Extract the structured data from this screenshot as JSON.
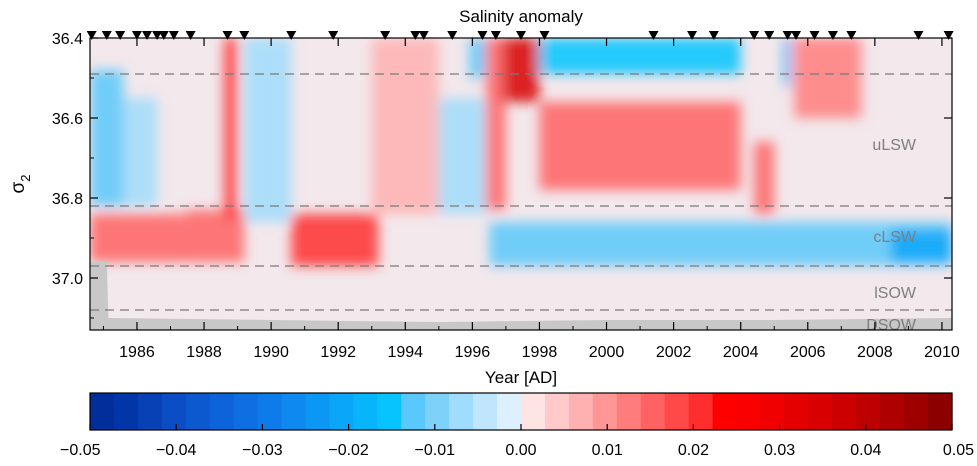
{
  "chart_data": {
    "type": "heatmap",
    "title": "Salinity anomaly",
    "xlabel": "Year [AD]",
    "ylabel": "σ2",
    "xlim": [
      1984.6,
      2010.3
    ],
    "ylim": [
      37.13,
      36.4
    ],
    "x_ticks": [
      1986,
      1988,
      1990,
      1992,
      1994,
      1996,
      1998,
      2000,
      2002,
      2004,
      2006,
      2008,
      2010
    ],
    "x_tick_labels": [
      "1986",
      "1988",
      "1990",
      "1992",
      "1994",
      "1996",
      "1998",
      "2000",
      "2002",
      "2004",
      "2006",
      "2008",
      "2010"
    ],
    "y_ticks": [
      36.4,
      36.6,
      36.8,
      37.0
    ],
    "y_tick_labels": [
      "36.4",
      "36.6",
      "36.8",
      "37.0"
    ],
    "layer_boundaries": [
      36.49,
      36.82,
      36.97,
      37.08
    ],
    "layer_labels": [
      {
        "text": "uLSW",
        "sigma": 36.665
      },
      {
        "text": "cLSW",
        "sigma": 36.895
      },
      {
        "text": "lSOW",
        "sigma": 37.035
      },
      {
        "text": "DSOW",
        "sigma": 37.115
      }
    ],
    "sample_markers": [
      1984.65,
      1985.1,
      1985.5,
      1986.0,
      1986.3,
      1986.6,
      1986.8,
      1987.1,
      1987.6,
      1988.7,
      1989.2,
      1990.6,
      1991.85,
      1993.4,
      1994.3,
      1994.55,
      1995.4,
      1996.3,
      1996.7,
      1997.45,
      1998.15,
      2001.4,
      2002.55,
      2003.2,
      2004.4,
      2004.85,
      2005.4,
      2005.65,
      2006.2,
      2006.75,
      2007.3,
      2009.3,
      2010.2
    ],
    "bottom_mask": [
      [
        1984.6,
        36.96
      ],
      [
        1985.1,
        36.96
      ],
      [
        1985.15,
        37.1
      ],
      [
        1990.0,
        37.105
      ],
      [
        1995.0,
        37.11
      ],
      [
        2000.0,
        37.105
      ],
      [
        2005.0,
        37.105
      ],
      [
        2010.3,
        37.1
      ]
    ],
    "colorbar": {
      "min": -0.05,
      "max": 0.05,
      "ticks": [
        -0.05,
        -0.04,
        -0.03,
        -0.02,
        -0.01,
        0.0,
        0.01,
        0.02,
        0.03,
        0.04,
        0.05
      ],
      "tick_labels": [
        "−0.05",
        "−0.04",
        "−0.03",
        "−0.02",
        "−0.01",
        "0.00",
        "0.01",
        "0.02",
        "0.03",
        "0.04",
        "0.05"
      ],
      "colors": [
        "#002E9A",
        "#0036A8",
        "#0840B6",
        "#0B4DC4",
        "#0C58CF",
        "#0D63D9",
        "#0E6FE3",
        "#0D7BEA",
        "#0D89F0",
        "#0C97F5",
        "#0AA6F9",
        "#08B5FC",
        "#07C4FE",
        "#5AC8FA",
        "#7ED2FA",
        "#A0DCFB",
        "#BFE6FC",
        "#DCF1FD",
        "#FFE4E4",
        "#FFCACA",
        "#FFB0B0",
        "#FF9696",
        "#FF7C7C",
        "#FF6262",
        "#FF4848",
        "#FF2E2E",
        "#FF0000",
        "#FA0000",
        "#F00000",
        "#E40000",
        "#D80000",
        "#CC0000",
        "#BD0000",
        "#AE0000",
        "#9E0000",
        "#8C0000"
      ]
    },
    "anomaly_features": [
      {
        "x": [
          1984.6,
          1985.6
        ],
        "sigma": [
          36.48,
          36.82
        ],
        "value": -0.012
      },
      {
        "x": [
          1985.6,
          1986.6
        ],
        "sigma": [
          36.55,
          36.82
        ],
        "value": -0.006
      },
      {
        "x": [
          1984.6,
          1987.5
        ],
        "sigma": [
          36.84,
          36.96
        ],
        "value": 0.014
      },
      {
        "x": [
          1987.5,
          1989.2
        ],
        "sigma": [
          36.83,
          36.96
        ],
        "value": 0.016
      },
      {
        "x": [
          1988.6,
          1989.0
        ],
        "sigma": [
          36.4,
          36.85
        ],
        "value": 0.02
      },
      {
        "x": [
          1989.2,
          1990.6
        ],
        "sigma": [
          36.4,
          36.86
        ],
        "value": -0.008
      },
      {
        "x": [
          1990.6,
          1993.2
        ],
        "sigma": [
          36.84,
          36.97
        ],
        "value": 0.022
      },
      {
        "x": [
          1993.0,
          1995.0
        ],
        "sigma": [
          36.4,
          36.84
        ],
        "value": 0.007
      },
      {
        "x": [
          1995.0,
          1996.4
        ],
        "sigma": [
          36.55,
          36.84
        ],
        "value": -0.008
      },
      {
        "x": [
          1995.9,
          1996.4
        ],
        "sigma": [
          36.4,
          36.5
        ],
        "value": -0.013
      },
      {
        "x": [
          1996.4,
          1997.0
        ],
        "sigma": [
          36.4,
          36.83
        ],
        "value": 0.016
      },
      {
        "x": [
          1996.9,
          1998.0
        ],
        "sigma": [
          36.4,
          36.56
        ],
        "value": 0.035
      },
      {
        "x": [
          1998.0,
          2004.0
        ],
        "sigma": [
          36.4,
          36.49
        ],
        "value": -0.014
      },
      {
        "x": [
          1998.0,
          2004.0
        ],
        "sigma": [
          36.56,
          36.78
        ],
        "value": 0.014
      },
      {
        "x": [
          1996.5,
          2010.3
        ],
        "sigma": [
          36.86,
          36.97
        ],
        "value": -0.012
      },
      {
        "x": [
          2004.4,
          2005.0
        ],
        "sigma": [
          36.66,
          36.84
        ],
        "value": 0.015
      },
      {
        "x": [
          2005.3,
          2005.5
        ],
        "sigma": [
          36.4,
          36.52
        ],
        "value": -0.02
      },
      {
        "x": [
          2005.6,
          2007.6
        ],
        "sigma": [
          36.4,
          36.6
        ],
        "value": 0.013
      },
      {
        "x": [
          2008.5,
          2010.3
        ],
        "sigma": [
          36.88,
          36.96
        ],
        "value": -0.022
      }
    ]
  }
}
